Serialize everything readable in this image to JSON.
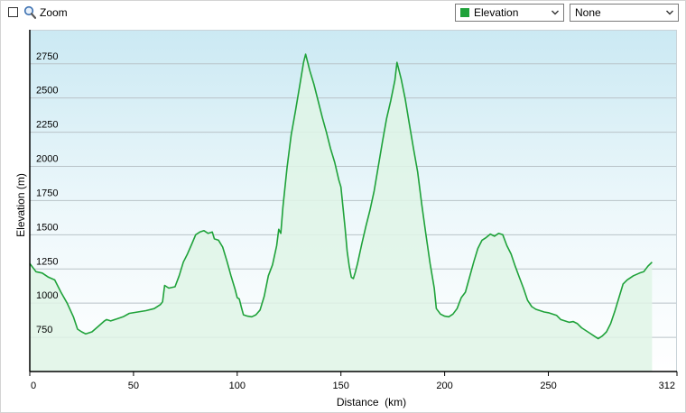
{
  "toolbar": {
    "zoom_label": "Zoom",
    "series_select": {
      "value": "Elevation",
      "color": "#1fa23a"
    },
    "overlay_select": {
      "value": "None"
    }
  },
  "chart_data": {
    "type": "area",
    "xlabel": "Distance  (km)",
    "ylabel": "Elevation (m)",
    "xlim": [
      0,
      312
    ],
    "ylim": [
      500,
      2999
    ],
    "x_ticks": [
      0,
      50,
      100,
      150,
      200,
      250,
      312
    ],
    "y_ticks": [
      750,
      1000,
      1250,
      1500,
      1750,
      2000,
      2250,
      2500,
      2750
    ],
    "grid": "horizontal",
    "series": [
      {
        "color": "#1fa23a",
        "fill": "#dff5e6",
        "points": [
          [
            0,
            1290
          ],
          [
            3,
            1230
          ],
          [
            6,
            1220
          ],
          [
            9,
            1190
          ],
          [
            12,
            1170
          ],
          [
            15,
            1080
          ],
          [
            18,
            1000
          ],
          [
            21,
            900
          ],
          [
            23,
            810
          ],
          [
            25,
            790
          ],
          [
            27,
            775
          ],
          [
            30,
            790
          ],
          [
            33,
            830
          ],
          [
            36,
            870
          ],
          [
            37,
            880
          ],
          [
            39,
            870
          ],
          [
            42,
            885
          ],
          [
            45,
            900
          ],
          [
            48,
            925
          ],
          [
            52,
            935
          ],
          [
            56,
            945
          ],
          [
            60,
            960
          ],
          [
            63,
            990
          ],
          [
            64,
            1010
          ],
          [
            65,
            1130
          ],
          [
            67,
            1110
          ],
          [
            70,
            1120
          ],
          [
            72,
            1200
          ],
          [
            74,
            1300
          ],
          [
            76,
            1360
          ],
          [
            78,
            1430
          ],
          [
            80,
            1500
          ],
          [
            82,
            1520
          ],
          [
            84,
            1530
          ],
          [
            86,
            1510
          ],
          [
            88,
            1520
          ],
          [
            89,
            1470
          ],
          [
            91,
            1460
          ],
          [
            93,
            1410
          ],
          [
            95,
            1310
          ],
          [
            97,
            1200
          ],
          [
            99,
            1100
          ],
          [
            100,
            1040
          ],
          [
            101,
            1030
          ],
          [
            102,
            970
          ],
          [
            103,
            915
          ],
          [
            105,
            905
          ],
          [
            107,
            900
          ],
          [
            109,
            915
          ],
          [
            111,
            950
          ],
          [
            113,
            1050
          ],
          [
            115,
            1200
          ],
          [
            117,
            1280
          ],
          [
            119,
            1420
          ],
          [
            120,
            1540
          ],
          [
            121,
            1510
          ],
          [
            122,
            1700
          ],
          [
            124,
            1990
          ],
          [
            126,
            2230
          ],
          [
            128,
            2400
          ],
          [
            130,
            2580
          ],
          [
            132,
            2760
          ],
          [
            133,
            2820
          ],
          [
            134,
            2760
          ],
          [
            135,
            2700
          ],
          [
            137,
            2600
          ],
          [
            139,
            2480
          ],
          [
            141,
            2360
          ],
          [
            143,
            2250
          ],
          [
            145,
            2130
          ],
          [
            147,
            2030
          ],
          [
            149,
            1900
          ],
          [
            150,
            1850
          ],
          [
            151,
            1700
          ],
          [
            152,
            1550
          ],
          [
            153,
            1380
          ],
          [
            154,
            1270
          ],
          [
            155,
            1190
          ],
          [
            156,
            1180
          ],
          [
            157,
            1230
          ],
          [
            158,
            1290
          ],
          [
            160,
            1430
          ],
          [
            162,
            1560
          ],
          [
            164,
            1680
          ],
          [
            166,
            1820
          ],
          [
            168,
            2000
          ],
          [
            170,
            2180
          ],
          [
            172,
            2350
          ],
          [
            174,
            2480
          ],
          [
            176,
            2630
          ],
          [
            177,
            2760
          ],
          [
            179,
            2640
          ],
          [
            181,
            2490
          ],
          [
            183,
            2310
          ],
          [
            185,
            2130
          ],
          [
            187,
            1960
          ],
          [
            189,
            1720
          ],
          [
            191,
            1500
          ],
          [
            193,
            1290
          ],
          [
            195,
            1110
          ],
          [
            196,
            960
          ],
          [
            198,
            920
          ],
          [
            200,
            905
          ],
          [
            202,
            900
          ],
          [
            204,
            920
          ],
          [
            206,
            960
          ],
          [
            208,
            1040
          ],
          [
            210,
            1080
          ],
          [
            212,
            1190
          ],
          [
            214,
            1300
          ],
          [
            216,
            1400
          ],
          [
            218,
            1460
          ],
          [
            220,
            1480
          ],
          [
            222,
            1505
          ],
          [
            224,
            1490
          ],
          [
            226,
            1510
          ],
          [
            228,
            1500
          ],
          [
            230,
            1420
          ],
          [
            232,
            1360
          ],
          [
            234,
            1270
          ],
          [
            236,
            1190
          ],
          [
            238,
            1110
          ],
          [
            240,
            1020
          ],
          [
            242,
            975
          ],
          [
            244,
            955
          ],
          [
            246,
            945
          ],
          [
            248,
            935
          ],
          [
            250,
            930
          ],
          [
            252,
            920
          ],
          [
            254,
            910
          ],
          [
            256,
            880
          ],
          [
            258,
            870
          ],
          [
            260,
            860
          ],
          [
            262,
            865
          ],
          [
            264,
            850
          ],
          [
            266,
            820
          ],
          [
            268,
            800
          ],
          [
            270,
            780
          ],
          [
            272,
            760
          ],
          [
            274,
            740
          ],
          [
            276,
            760
          ],
          [
            278,
            790
          ],
          [
            280,
            850
          ],
          [
            282,
            940
          ],
          [
            284,
            1040
          ],
          [
            286,
            1140
          ],
          [
            288,
            1170
          ],
          [
            291,
            1200
          ],
          [
            294,
            1220
          ],
          [
            296,
            1230
          ],
          [
            298,
            1270
          ],
          [
            300,
            1300
          ]
        ]
      }
    ]
  }
}
